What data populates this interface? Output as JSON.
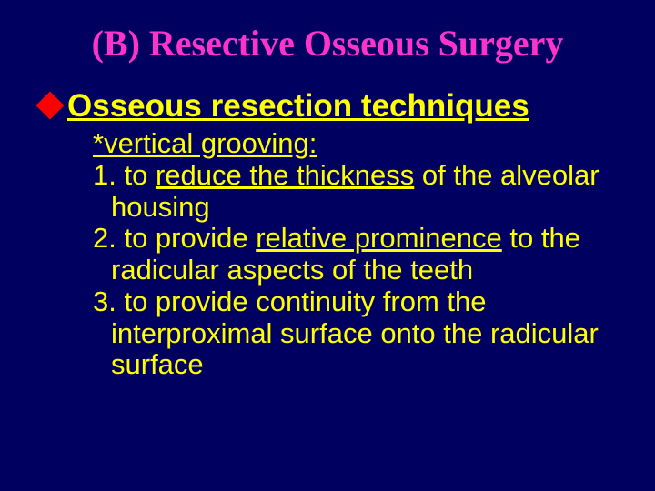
{
  "colors": {
    "background": "#000060",
    "title": "#ff33cc",
    "section": "#ffff00",
    "bullet": "#ff0000",
    "body": "#ffff00"
  },
  "typography": {
    "title_family": "Times New Roman",
    "body_family": "Comic Sans MS",
    "title_fontsize": 40,
    "section_fontsize": 35,
    "body_fontsize": 31
  },
  "title": "(B)  Resective Osseous Surgery",
  "section": "Osseous resection techniques",
  "subheading": "*vertical grooving:",
  "items": {
    "i1_pre": "1. to ",
    "i1_ul": "reduce the thickness",
    "i1_post": " of the alveolar housing",
    "i2_pre": "2. to provide ",
    "i2_ul": "relative prominence",
    "i2_post": " to the radicular aspects of the teeth",
    "i3": "3. to provide continuity from the interproximal surface onto the radicular surface"
  }
}
